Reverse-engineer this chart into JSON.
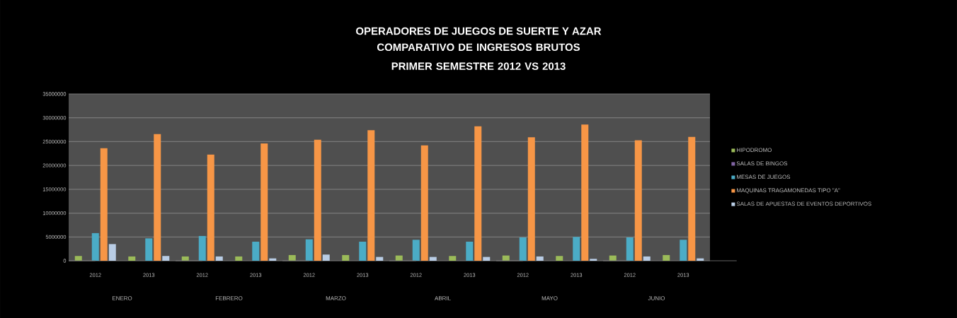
{
  "chart_data": {
    "type": "bar",
    "title": "OPERADORES DE JUEGOS DE SUERTE Y AZAR",
    "subtitle": "COMPARATIVO DE INGRESOS BRUTOS PRIMER SEMESTRE 2012 VS 2013",
    "categories": [
      "2012",
      "2013",
      "2012",
      "2013",
      "2012",
      "2013",
      "2012",
      "2013",
      "2012",
      "2013",
      "2012",
      "2013"
    ],
    "annotations": [
      "ENERO",
      "FEBRERO",
      "MARZO",
      "ABRIL",
      "MAYO",
      "JUNIO"
    ],
    "series": [
      {
        "name": "HIPODROMO",
        "color": "#9bbb59",
        "values": [
          1000000,
          900000,
          900000,
          900000,
          1200000,
          1200000,
          1100000,
          1000000,
          1100000,
          1000000,
          1100000,
          1200000
        ]
      },
      {
        "name": "SALAS DE BINGOS",
        "color": "#8064a2",
        "values": [
          0,
          0,
          0,
          0,
          0,
          0,
          0,
          0,
          0,
          0,
          0,
          0
        ]
      },
      {
        "name": "MESAS DE JUEGOS",
        "color": "#4bacc6",
        "values": [
          5800000,
          4700000,
          5200000,
          4000000,
          4500000,
          4000000,
          4400000,
          4000000,
          4900000,
          5000000,
          4900000,
          4400000
        ]
      },
      {
        "name": "MAQUINAS TRAGAMONEDAS TIPO \"A\"",
        "color": "#f79646",
        "values": [
          23600000,
          26600000,
          22300000,
          24600000,
          25400000,
          27400000,
          24200000,
          28200000,
          25900000,
          28600000,
          25300000,
          26000000
        ]
      },
      {
        "name": "SALAS DE APUESTAS DE EVENTOS DEPORTIVOS",
        "color": "#b9cde5",
        "values": [
          3500000,
          1000000,
          900000,
          500000,
          1300000,
          800000,
          800000,
          800000,
          900000,
          400000,
          900000,
          500000
        ]
      }
    ],
    "ylim": [
      0,
      35000000
    ],
    "yticks": [
      0,
      5000000,
      10000000,
      15000000,
      20000000,
      25000000,
      30000000,
      35000000
    ],
    "grid": "y",
    "legend": "right"
  }
}
